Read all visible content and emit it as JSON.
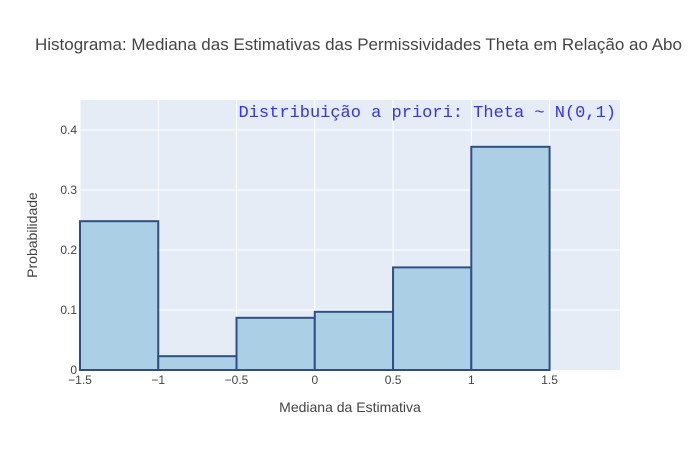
{
  "chart_data": {
    "type": "bar",
    "title": "Histograma: Mediana das Estimativas das Permissividades Theta em Relação ao Abo",
    "xlabel": "Mediana da Estimativa",
    "ylabel": "Probabilidade",
    "annotation": "Distribuição a priori: Theta ~ N(0,1)",
    "bins": [
      {
        "x0": -1.5,
        "x1": -1.0,
        "value": 0.248
      },
      {
        "x0": -1.0,
        "x1": -0.5,
        "value": 0.023
      },
      {
        "x0": -0.5,
        "x1": 0.0,
        "value": 0.087
      },
      {
        "x0": 0.0,
        "x1": 0.5,
        "value": 0.097
      },
      {
        "x0": 0.5,
        "x1": 1.0,
        "value": 0.171
      },
      {
        "x0": 1.0,
        "x1": 1.5,
        "value": 0.372
      }
    ],
    "xlim": [
      -1.5,
      1.95
    ],
    "ylim": [
      0,
      0.45
    ],
    "xticks": [
      -1.5,
      -1,
      -0.5,
      0,
      0.5,
      1,
      1.5
    ],
    "xtick_labels": [
      "−1.5",
      "−1",
      "−0.5",
      "0",
      "0.5",
      "1",
      "1.5"
    ],
    "yticks": [
      0,
      0.1,
      0.2,
      0.3,
      0.4
    ],
    "ytick_labels": [
      "0",
      "0.1",
      "0.2",
      "0.3",
      "0.4"
    ],
    "grid": true,
    "colors": {
      "bar_fill": "#abd0e6",
      "bar_edge": "#2e4f85",
      "plot_bg": "#e5ecf6",
      "grid": "#ffffff",
      "annotation": "#3333ff"
    }
  }
}
